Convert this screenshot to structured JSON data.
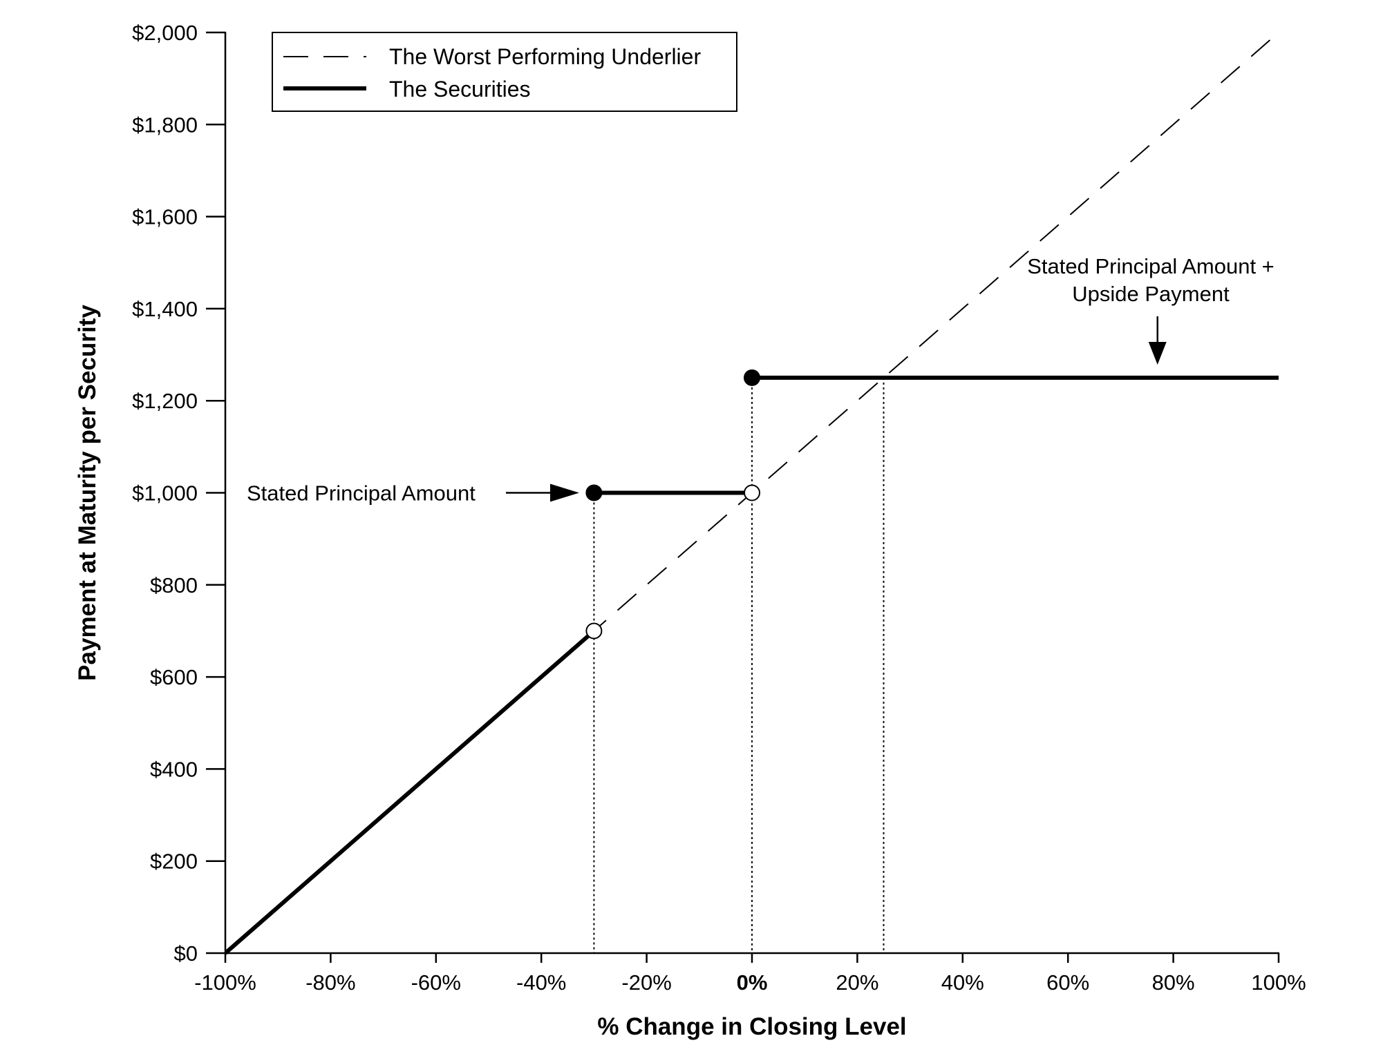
{
  "chart_data": {
    "type": "line",
    "title": "",
    "xlabel": "% Change in Closing Level",
    "ylabel": "Payment at Maturity per Security",
    "xlim": [
      -100,
      100
    ],
    "ylim": [
      0,
      2000
    ],
    "x_ticks": [
      -100,
      -80,
      -60,
      -40,
      -20,
      0,
      20,
      40,
      60,
      80,
      100
    ],
    "x_tick_labels": [
      "-100%",
      "-80%",
      "-60%",
      "-40%",
      "-20%",
      "0%",
      "20%",
      "40%",
      "60%",
      "80%",
      "100%"
    ],
    "y_ticks": [
      0,
      200,
      400,
      600,
      800,
      1000,
      1200,
      1400,
      1600,
      1800,
      2000
    ],
    "y_tick_labels": [
      "$0",
      "$200",
      "$400",
      "$600",
      "$800",
      "$1,000",
      "$1,200",
      "$1,400",
      "$1,600",
      "$1,800",
      "$2,000"
    ],
    "grid": false,
    "legend_position": "top-left",
    "series": [
      {
        "name": "The Worst Performing Underlier",
        "style": "dashed",
        "segments": [
          [
            [
              -100,
              0
            ],
            [
              100,
              2000
            ]
          ]
        ]
      },
      {
        "name": "The Securities",
        "style": "solid",
        "segments": [
          [
            [
              -100,
              0
            ],
            [
              -30,
              700
            ]
          ],
          [
            [
              -30,
              1000
            ],
            [
              0,
              1000
            ]
          ],
          [
            [
              0,
              1250
            ],
            [
              100,
              1250
            ]
          ]
        ],
        "filled_points": [
          [
            -30,
            1000
          ],
          [
            0,
            1250
          ]
        ],
        "open_points": [
          [
            -30,
            700
          ],
          [
            0,
            1000
          ]
        ]
      }
    ],
    "reference_lines": [
      {
        "x": -30,
        "y": 1000
      },
      {
        "x": 0,
        "y": 1250
      },
      {
        "x": 25,
        "y": 1250
      }
    ],
    "annotations": [
      {
        "lines": [
          "Stated Principal Amount"
        ],
        "points_to": [
          -30,
          1000
        ]
      },
      {
        "lines": [
          "Stated Principal Amount +",
          "Upside Payment"
        ],
        "points_to": [
          77,
          1250
        ]
      }
    ]
  }
}
